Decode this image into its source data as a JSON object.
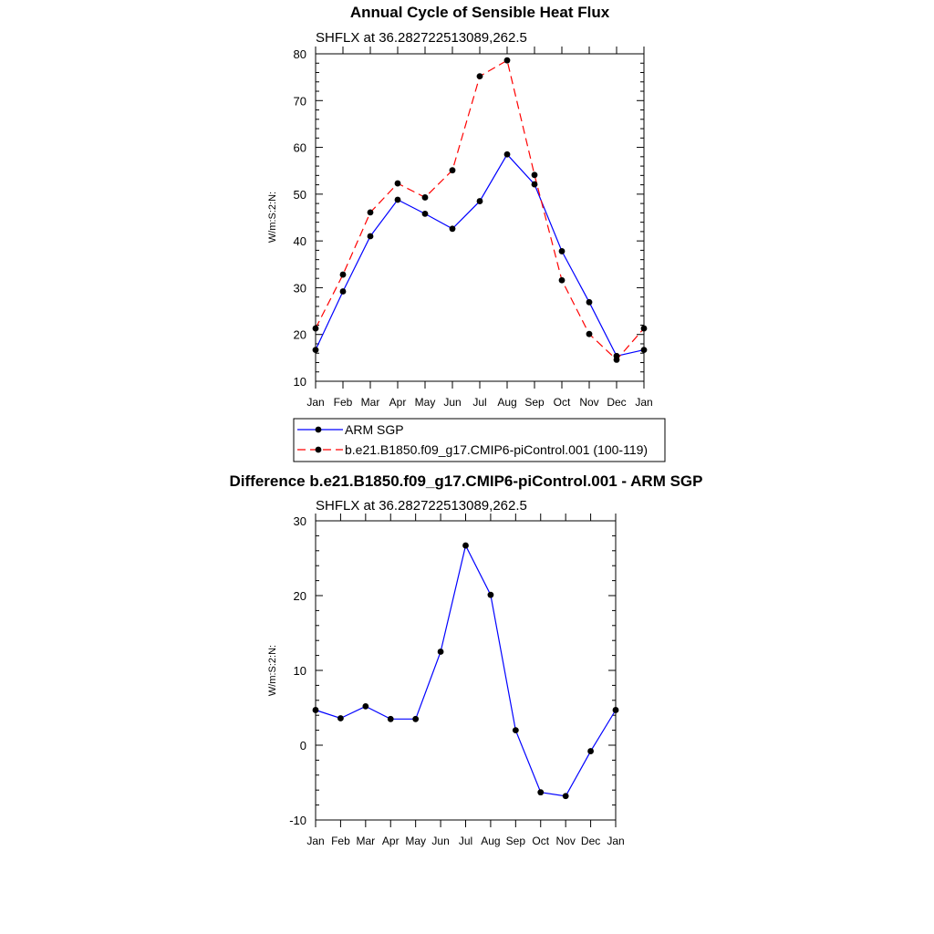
{
  "chart_data": [
    {
      "type": "line",
      "title": "Annual Cycle of Sensible Heat Flux",
      "subtitle": "SHFLX at 36.282722513089,262.5",
      "ylabel": "W/m:S:2:N:",
      "xlabel": "",
      "categories": [
        "Jan",
        "Feb",
        "Mar",
        "Apr",
        "May",
        "Jun",
        "Jul",
        "Aug",
        "Sep",
        "Oct",
        "Nov",
        "Dec",
        "Jan"
      ],
      "ylim": [
        10,
        80
      ],
      "yticks": [
        "10",
        "20",
        "30",
        "40",
        "50",
        "60",
        "70",
        "80"
      ],
      "legend": {
        "placement": "bottom"
      },
      "series": [
        {
          "name": "ARM SGP",
          "color": "#0000ff",
          "dash": "solid",
          "values": [
            16.7,
            29.2,
            41.0,
            48.8,
            45.8,
            42.6,
            48.5,
            58.5,
            52.1,
            37.8,
            26.9,
            15.4,
            16.7
          ]
        },
        {
          "name": "b.e21.B1850.f09_g17.CMIP6-piControl.001 (100-119)",
          "color": "#ff0000",
          "dash": "dashed",
          "values": [
            21.3,
            32.8,
            46.1,
            52.3,
            49.3,
            55.1,
            75.2,
            78.6,
            54.1,
            31.6,
            20.1,
            14.6,
            21.3
          ]
        }
      ]
    },
    {
      "type": "line",
      "title": "Difference b.e21.B1850.f09_g17.CMIP6-piControl.001 - ARM SGP",
      "subtitle": "SHFLX at 36.282722513089,262.5",
      "ylabel": "W/m:S:2:N:",
      "xlabel": "",
      "categories": [
        "Jan",
        "Feb",
        "Mar",
        "Apr",
        "May",
        "Jun",
        "Jul",
        "Aug",
        "Sep",
        "Oct",
        "Nov",
        "Dec",
        "Jan"
      ],
      "ylim": [
        -10,
        30
      ],
      "yticks": [
        "-10",
        "0",
        "10",
        "20",
        "30"
      ],
      "series": [
        {
          "name": "Difference",
          "color": "#0000ff",
          "dash": "solid",
          "values": [
            4.7,
            3.6,
            5.2,
            3.5,
            3.5,
            12.5,
            26.7,
            20.1,
            2.0,
            -6.3,
            -6.8,
            -0.8,
            4.7
          ]
        }
      ]
    }
  ]
}
